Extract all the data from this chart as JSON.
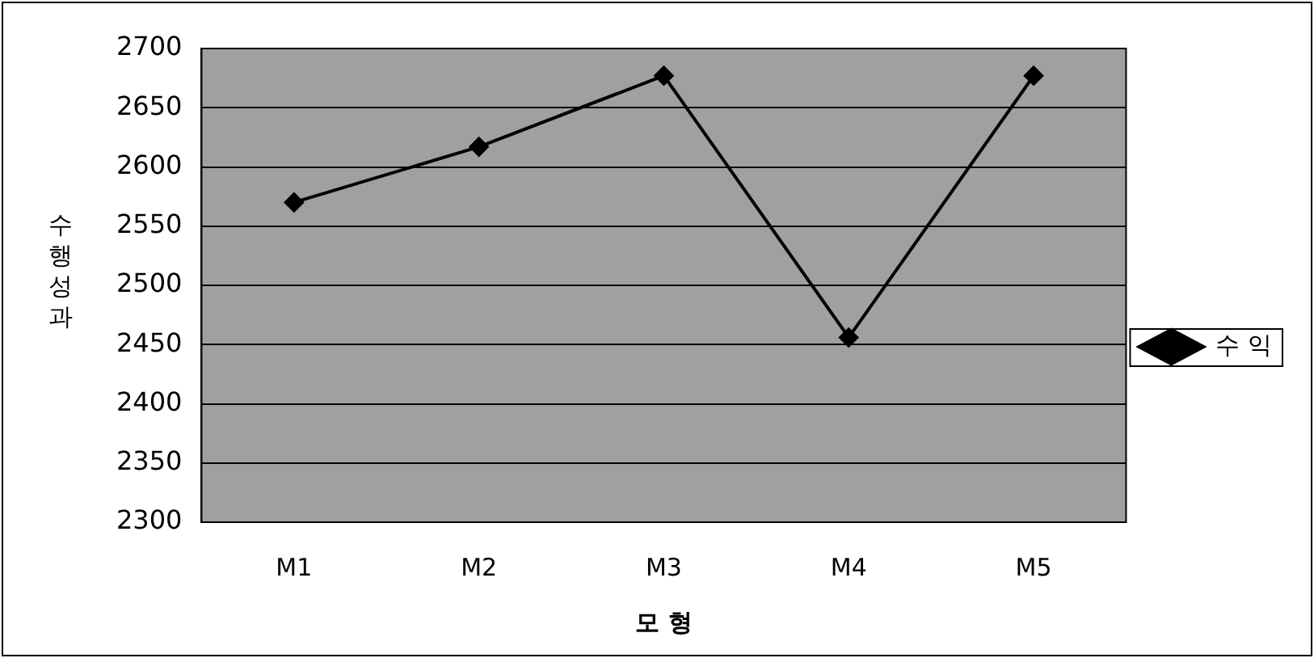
{
  "chart_data": {
    "type": "line",
    "xlabel": "모 형",
    "ylabel": "수행성과",
    "categories": [
      "M1",
      "M2",
      "M3",
      "M4",
      "M5"
    ],
    "series": [
      {
        "name": "수 익",
        "color": "#000000",
        "values": [
          2570,
          2617,
          2677,
          2456,
          2677
        ]
      }
    ],
    "ylim": [
      2300,
      2700
    ],
    "yticks": [
      2300,
      2350,
      2400,
      2450,
      2500,
      2550,
      2600,
      2650,
      2700
    ],
    "grid": "y",
    "legend": "right",
    "marker": "diamond",
    "line_style": "solid"
  }
}
